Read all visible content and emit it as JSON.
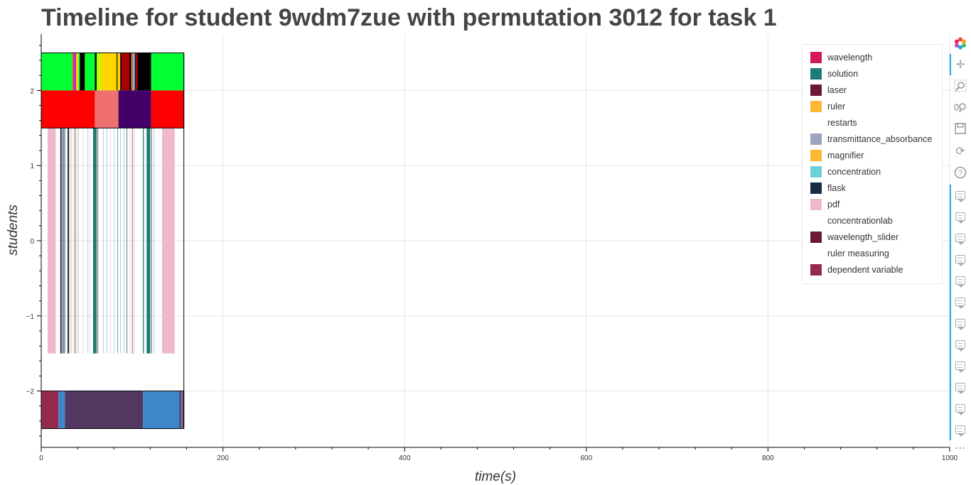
{
  "chart_data": {
    "type": "timeline",
    "title": "Timeline for student 9wdm7zue with permutation 3012 for task 1",
    "xlabel": "time(s)",
    "ylabel": "students",
    "xlim": [
      0,
      1000
    ],
    "ylim": [
      -2.75,
      2.75
    ],
    "x_ticks": [
      0,
      200,
      400,
      600,
      800,
      1000
    ],
    "y_ticks": [
      2,
      1,
      0,
      -1,
      -2
    ],
    "y_tick_labels": [
      "2",
      "1",
      "0",
      "−1",
      "−2"
    ],
    "grid": true,
    "legend_position": "top-right",
    "legend": [
      {
        "label": "wavelength",
        "color": "#d6195e"
      },
      {
        "label": "solution",
        "color": "#1e7b74"
      },
      {
        "label": "laser",
        "color": "#6b1a33"
      },
      {
        "label": "ruler",
        "color": "#fbb836"
      },
      {
        "label": "restarts",
        "color": "#ffffff"
      },
      {
        "label": "transmittance_absorbance",
        "color": "#9aa7b8"
      },
      {
        "label": "magnifier",
        "color": "#fbb836"
      },
      {
        "label": "concentration",
        "color": "#6bd0d8"
      },
      {
        "label": "flask",
        "color": "#1b2b44"
      },
      {
        "label": "pdf",
        "color": "#efb8cc"
      },
      {
        "label": "concentrationlab",
        "color": "#ffffff"
      },
      {
        "label": "wavelength_slider",
        "color": "#6b1a33"
      },
      {
        "label": "ruler measuring",
        "color": "#ffffff"
      },
      {
        "label": "dependent variable",
        "color": "#952a4e"
      }
    ],
    "rows": [
      {
        "y_range": [
          2.0,
          2.5
        ],
        "segments": [
          {
            "start": 0,
            "end": 34,
            "color": "#00ff33"
          },
          {
            "start": 34,
            "end": 35.5,
            "color": "#ff6600"
          },
          {
            "start": 35.5,
            "end": 37,
            "color": "#3355ff"
          },
          {
            "start": 37,
            "end": 38.5,
            "color": "#ff00aa"
          },
          {
            "start": 38.5,
            "end": 41,
            "color": "#ffd400"
          },
          {
            "start": 41,
            "end": 42.5,
            "color": "#00ff33"
          },
          {
            "start": 42.5,
            "end": 48,
            "color": "#000000"
          },
          {
            "start": 48,
            "end": 59,
            "color": "#00ff33"
          },
          {
            "start": 59,
            "end": 61,
            "color": "#000000"
          },
          {
            "start": 61,
            "end": 66,
            "color": "#b8ff00"
          },
          {
            "start": 66,
            "end": 83,
            "color": "#ffd400"
          },
          {
            "start": 83,
            "end": 84,
            "color": "#000000"
          },
          {
            "start": 84,
            "end": 87,
            "color": "#ffd400"
          },
          {
            "start": 87,
            "end": 88.5,
            "color": "#000000"
          },
          {
            "start": 88.5,
            "end": 97,
            "color": "#aa0000"
          },
          {
            "start": 97,
            "end": 99,
            "color": "#000000"
          },
          {
            "start": 99,
            "end": 101,
            "color": "#ff6600"
          },
          {
            "start": 101,
            "end": 103,
            "color": "#6bb8ff"
          },
          {
            "start": 103,
            "end": 104,
            "color": "#000000"
          },
          {
            "start": 104,
            "end": 106,
            "color": "#aa0000"
          },
          {
            "start": 106,
            "end": 121,
            "color": "#000000"
          },
          {
            "start": 121,
            "end": 157,
            "color": "#00ff33"
          }
        ]
      },
      {
        "y_range": [
          1.5,
          2.0
        ],
        "segments": [
          {
            "start": 0,
            "end": 59,
            "color": "#ff0000"
          },
          {
            "start": 59,
            "end": 85,
            "color": "#f07070"
          },
          {
            "start": 85,
            "end": 121,
            "color": "#420068"
          },
          {
            "start": 121,
            "end": 157,
            "color": "#ff0000"
          }
        ]
      },
      {
        "y_range": [
          -1.5,
          1.5
        ],
        "segments": [
          {
            "start": 7,
            "end": 16,
            "color": "#efb8cc"
          },
          {
            "start": 21,
            "end": 22.5,
            "color": "#1b2b44"
          },
          {
            "start": 23.5,
            "end": 24.5,
            "color": "#1b2b44"
          },
          {
            "start": 25.5,
            "end": 26.2,
            "color": "#1b2b44"
          },
          {
            "start": 29,
            "end": 30.5,
            "color": "#1b2b44"
          },
          {
            "start": 31,
            "end": 31.6,
            "color": "#9aa7b8"
          },
          {
            "start": 33,
            "end": 33.5,
            "color": "#fbb836"
          },
          {
            "start": 35,
            "end": 35.4,
            "color": "#efb8cc"
          },
          {
            "start": 37,
            "end": 37.6,
            "color": "#1b2b44"
          },
          {
            "start": 39,
            "end": 39.5,
            "color": "#fbb836"
          },
          {
            "start": 41,
            "end": 41.4,
            "color": "#9aa7b8"
          },
          {
            "start": 46,
            "end": 46.4,
            "color": "#efb8cc"
          },
          {
            "start": 51,
            "end": 51.4,
            "color": "#6bd0d8"
          },
          {
            "start": 53,
            "end": 53.4,
            "color": "#efb8cc"
          },
          {
            "start": 57,
            "end": 61,
            "color": "#1e7b74"
          },
          {
            "start": 62,
            "end": 62.6,
            "color": "#1b2b44"
          },
          {
            "start": 68,
            "end": 68.4,
            "color": "#9aa7b8"
          },
          {
            "start": 72,
            "end": 72.6,
            "color": "#6bd0d8"
          },
          {
            "start": 76,
            "end": 76.4,
            "color": "#efb8cc"
          },
          {
            "start": 80,
            "end": 80.5,
            "color": "#6bd0d8"
          },
          {
            "start": 84,
            "end": 84.5,
            "color": "#1e7b74"
          },
          {
            "start": 87,
            "end": 87.4,
            "color": "#9aa7b8"
          },
          {
            "start": 91,
            "end": 91.6,
            "color": "#6bd0d8"
          },
          {
            "start": 94,
            "end": 94.5,
            "color": "#1b2b44"
          },
          {
            "start": 97,
            "end": 97.4,
            "color": "#efb8cc"
          },
          {
            "start": 100,
            "end": 100.5,
            "color": "#6b1a33"
          },
          {
            "start": 102,
            "end": 102.4,
            "color": "#9aa7b8"
          },
          {
            "start": 112,
            "end": 113,
            "color": "#1e7b74"
          },
          {
            "start": 116,
            "end": 120,
            "color": "#1e7b74"
          },
          {
            "start": 121,
            "end": 121.6,
            "color": "#1b2b44"
          },
          {
            "start": 124,
            "end": 124.4,
            "color": "#9aa7b8"
          },
          {
            "start": 133,
            "end": 147,
            "color": "#efb8cc"
          }
        ]
      },
      {
        "y_range": [
          -2.5,
          -2.0
        ],
        "segments": [
          {
            "start": 0,
            "end": 19,
            "color": "#952a4e"
          },
          {
            "start": 19,
            "end": 26,
            "color": "#3d87c9"
          },
          {
            "start": 26,
            "end": 112,
            "color": "#523860"
          },
          {
            "start": 112,
            "end": 152,
            "color": "#3d87c9"
          },
          {
            "start": 152,
            "end": 154,
            "color": "#523860"
          },
          {
            "start": 154,
            "end": 155.5,
            "color": "#3d87c9"
          },
          {
            "start": 155.5,
            "end": 157,
            "color": "#952a4e"
          }
        ]
      }
    ]
  },
  "toolbar": {
    "icons": [
      "bokeh-logo-icon",
      "pan-icon",
      "box-zoom-icon",
      "wheel-zoom-icon",
      "save-icon",
      "reset-icon",
      "help-icon",
      "hover-icon"
    ],
    "hover_tool_count": 12,
    "more_label": "⋯"
  }
}
